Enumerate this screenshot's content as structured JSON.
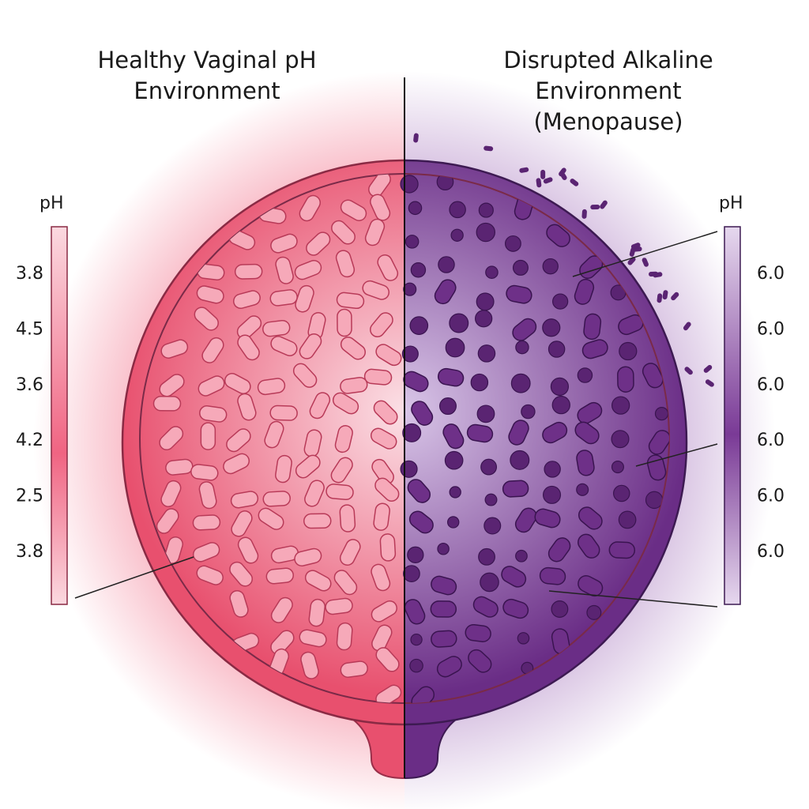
{
  "left": {
    "title": [
      "Healthy Vaginal pH",
      "Environment"
    ],
    "scale_label": "pH",
    "scale_values": [
      "3.8",
      "4.5",
      "3.6",
      "4.2",
      "2.5",
      "3.8"
    ]
  },
  "right": {
    "title": [
      "Disrupted Alkaline",
      "Environment",
      "(Menopause)"
    ],
    "scale_label": "pH",
    "scale_values": [
      "6.0",
      "6.0",
      "6.0",
      "6.0",
      "6.0",
      "6.0"
    ]
  }
}
